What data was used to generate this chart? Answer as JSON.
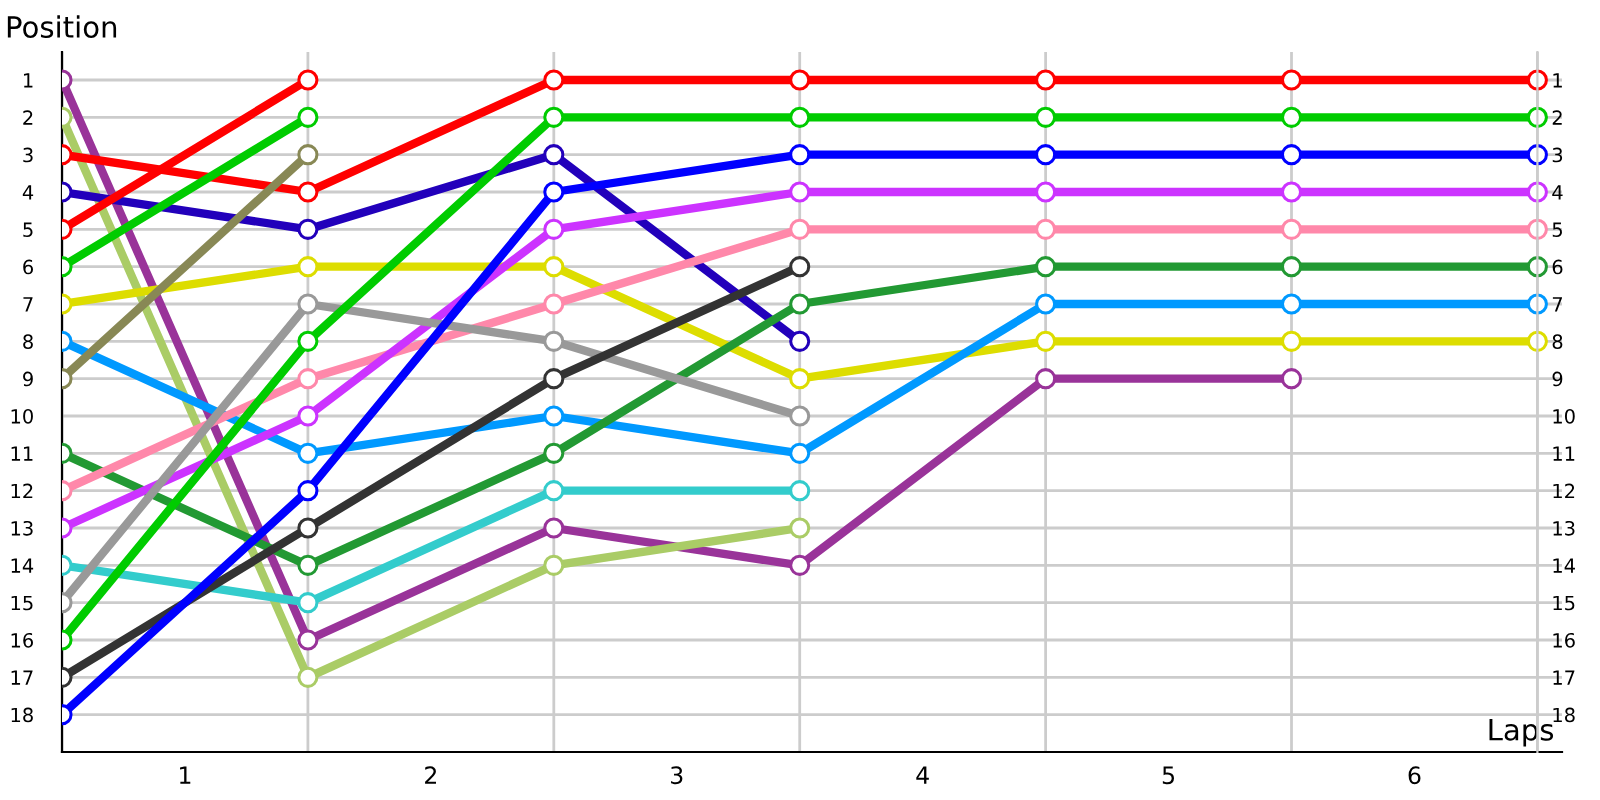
{
  "chart_data": {
    "type": "line",
    "xlabel": "Laps",
    "ylabel": "Position",
    "x": [
      0,
      1,
      2,
      3,
      4,
      5,
      6
    ],
    "xlim": [
      0,
      6.1
    ],
    "xticks": [
      {
        "value": 0,
        "label": null
      },
      {
        "value": 0.5,
        "label": "1"
      },
      {
        "value": 1,
        "label": null
      },
      {
        "value": 1.5,
        "label": "2"
      },
      {
        "value": 2,
        "label": null
      },
      {
        "value": 2.5,
        "label": "3"
      },
      {
        "value": 3,
        "label": null
      },
      {
        "value": 3.5,
        "label": "4"
      },
      {
        "value": 4,
        "label": null
      },
      {
        "value": 4.5,
        "label": "5"
      },
      {
        "value": 5,
        "label": null
      },
      {
        "value": 5.5,
        "label": "6"
      },
      {
        "value": 6,
        "label": null
      }
    ],
    "ylim": [
      19,
      0.25
    ],
    "yticks": [
      1,
      2,
      3,
      4,
      5,
      6,
      7,
      8,
      9,
      10,
      11,
      12,
      13,
      14,
      15,
      16,
      17,
      18
    ],
    "y2lim": [
      19,
      0.25
    ],
    "y2ticks": [
      1,
      2,
      3,
      4,
      5,
      6,
      7,
      8,
      9,
      10,
      11,
      12,
      13,
      14,
      15,
      16,
      17,
      18
    ],
    "grid": true,
    "marker": "circle",
    "line_style": "solid",
    "series": [
      {
        "color": "#993399",
        "values": [
          1,
          16,
          13,
          14,
          9,
          9,
          null
        ]
      },
      {
        "color": "#aacc66",
        "values": [
          2,
          17,
          14,
          13,
          null,
          null,
          null
        ]
      },
      {
        "color": "#ff0000",
        "values": [
          3,
          4,
          1,
          1,
          1,
          1,
          1
        ]
      },
      {
        "color": "#2200bb",
        "values": [
          4,
          5,
          3,
          8,
          null,
          null,
          null
        ]
      },
      {
        "color": "#ff0000",
        "values": [
          5,
          1,
          null,
          null,
          null,
          null,
          null
        ]
      },
      {
        "color": "#00cc00",
        "values": [
          6,
          2,
          null,
          null,
          null,
          null,
          null
        ]
      },
      {
        "color": "#dddd00",
        "values": [
          7,
          6,
          6,
          9,
          8,
          8,
          8
        ]
      },
      {
        "color": "#0099ff",
        "values": [
          8,
          11,
          10,
          11,
          7,
          7,
          7
        ]
      },
      {
        "color": "#888855",
        "values": [
          9,
          3,
          null,
          null,
          null,
          null,
          null
        ]
      },
      {
        "color": "#229933",
        "values": [
          11,
          14,
          11,
          7,
          6,
          6,
          6
        ]
      },
      {
        "color": "#ff88aa",
        "values": [
          12,
          9,
          7,
          5,
          5,
          5,
          5
        ]
      },
      {
        "color": "#cc33ff",
        "values": [
          13,
          10,
          5,
          4,
          4,
          4,
          4
        ]
      },
      {
        "color": "#33cccc",
        "values": [
          14,
          15,
          12,
          12,
          null,
          null,
          null
        ]
      },
      {
        "color": "#999999",
        "values": [
          15,
          7,
          8,
          10,
          null,
          null,
          null
        ]
      },
      {
        "color": "#00cc00",
        "values": [
          16,
          8,
          2,
          2,
          2,
          2,
          2
        ]
      },
      {
        "color": "#333333",
        "values": [
          17,
          13,
          9,
          6,
          null,
          null,
          null
        ]
      },
      {
        "color": "#0000ff",
        "values": [
          18,
          12,
          4,
          3,
          3,
          3,
          3
        ]
      }
    ]
  }
}
